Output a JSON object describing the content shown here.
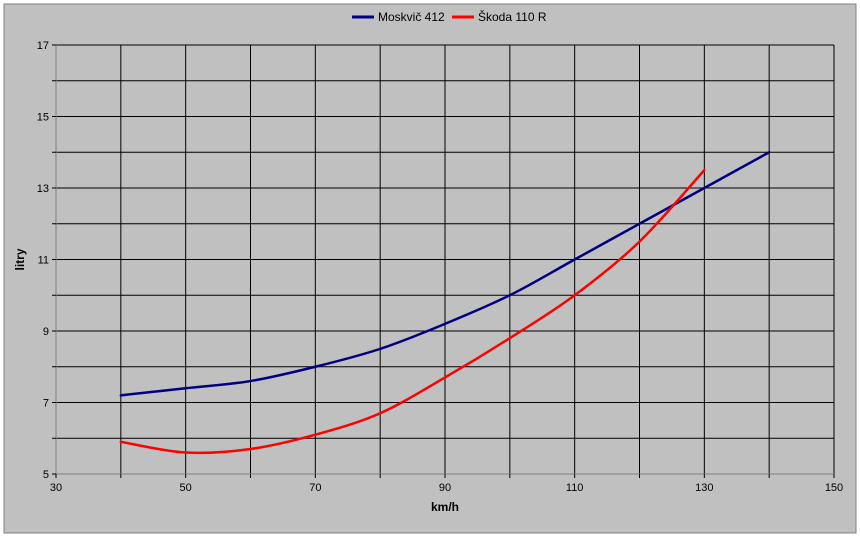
{
  "chart_data": {
    "type": "line",
    "title": "",
    "xlabel": "km/h",
    "ylabel": "litry",
    "xlim": [
      30,
      150
    ],
    "ylim": [
      5,
      17
    ],
    "xticks": [
      30,
      50,
      70,
      90,
      110,
      130,
      150
    ],
    "yticks": [
      5,
      7,
      9,
      11,
      13,
      15,
      17
    ],
    "x_gridlines": [
      30,
      40,
      50,
      60,
      70,
      80,
      90,
      100,
      110,
      120,
      130,
      140,
      150
    ],
    "y_gridlines": [
      5,
      6,
      7,
      8,
      9,
      10,
      11,
      12,
      13,
      14,
      15,
      16,
      17
    ],
    "grid": true,
    "legend_position": "top-center",
    "colors": {
      "background": "#c0c0c0",
      "plot_area": "#c0c0c0",
      "grid": "#000000",
      "axis": "#808080"
    },
    "series": [
      {
        "name": "Moskvič 412",
        "color": "#000080",
        "x": [
          40,
          50,
          60,
          70,
          80,
          90,
          100,
          110,
          120,
          130,
          140
        ],
        "y": [
          7.2,
          7.4,
          7.6,
          8.0,
          8.5,
          9.2,
          10.0,
          11.0,
          12.0,
          13.0,
          14.0
        ]
      },
      {
        "name": "Škoda 110 R",
        "color": "#ff0000",
        "x": [
          40,
          50,
          60,
          70,
          80,
          90,
          100,
          110,
          120,
          130
        ],
        "y": [
          5.9,
          5.6,
          5.7,
          6.1,
          6.7,
          7.7,
          8.8,
          10.0,
          11.5,
          13.5
        ]
      }
    ]
  }
}
